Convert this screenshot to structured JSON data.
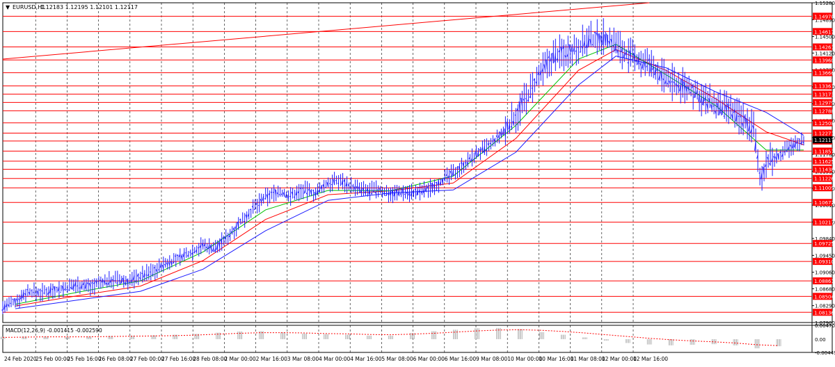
{
  "chart_data": {
    "type": "candlestick",
    "symbol_label": "EURUSD,H1",
    "ohlc_label": "1.12183 1.12195 1.12101 1.12117",
    "price_range": [
      1.079,
      1.1528
    ],
    "x_ticks": [
      "24 Feb 2020",
      "25 Feb 00:00",
      "25 Feb 16:00",
      "26 Feb 08:00",
      "27 Feb 00:00",
      "27 Feb 16:00",
      "28 Feb 08:00",
      "2 Mar 00:00",
      "2 Mar 16:00",
      "3 Mar 08:00",
      "4 Mar 00:00",
      "4 Mar 16:00",
      "5 Mar 08:00",
      "6 Mar 00:00",
      "6 Mar 16:00",
      "9 Mar 08:00",
      "10 Mar 00:00",
      "10 Mar 16:00",
      "11 Mar 08:00",
      "12 Mar 00:00",
      "12 Mar 16:00"
    ],
    "y_ticks": [
      "1.15280",
      "1.14890",
      "1.14500",
      "1.14120",
      "1.13730",
      "1.13340",
      "1.12950",
      "1.12560",
      "1.12170",
      "1.11780",
      "1.11390",
      "1.11000",
      "1.10610",
      "1.10220",
      "1.09840",
      "1.09450",
      "1.09060",
      "1.08680",
      "1.08290",
      "1.07900"
    ],
    "level_lines": [
      "1.14970",
      "1.14617",
      "1.14261",
      "1.13960",
      "1.13666",
      "1.13361",
      "1.13173",
      "1.12979",
      "1.12788",
      "1.12508",
      "1.12271",
      "1.12089",
      "1.11857",
      "1.11625",
      "1.11438",
      "1.11226",
      "1.11009",
      "1.10672",
      "1.10217",
      "1.09725",
      "1.09310",
      "1.08861",
      "1.08504",
      "1.08136"
    ],
    "current_price": "1.12117",
    "price_path": [
      [
        0,
        1.0825
      ],
      [
        6,
        1.0838
      ],
      [
        12,
        1.0862
      ],
      [
        18,
        1.0858
      ],
      [
        24,
        1.0866
      ],
      [
        30,
        1.0869
      ],
      [
        36,
        1.0878
      ],
      [
        42,
        1.0874
      ],
      [
        48,
        1.0883
      ],
      [
        54,
        1.0889
      ],
      [
        60,
        1.0884
      ],
      [
        66,
        1.0897
      ],
      [
        72,
        1.0908
      ],
      [
        78,
        1.0925
      ],
      [
        84,
        1.0938
      ],
      [
        90,
        1.0952
      ],
      [
        96,
        1.0968
      ],
      [
        102,
        1.0962
      ],
      [
        108,
        1.0989
      ],
      [
        114,
        1.1022
      ],
      [
        120,
        1.1052
      ],
      [
        126,
        1.1079
      ],
      [
        132,
        1.1092
      ],
      [
        138,
        1.1082
      ],
      [
        144,
        1.1096
      ],
      [
        150,
        1.1088
      ],
      [
        156,
        1.1112
      ],
      [
        162,
        1.1118
      ],
      [
        168,
        1.1102
      ],
      [
        174,
        1.1093
      ],
      [
        180,
        1.1096
      ],
      [
        186,
        1.1088
      ],
      [
        192,
        1.1092
      ],
      [
        198,
        1.1089
      ],
      [
        204,
        1.1098
      ],
      [
        210,
        1.1115
      ],
      [
        216,
        1.1135
      ],
      [
        222,
        1.1158
      ],
      [
        228,
        1.1182
      ],
      [
        234,
        1.1199
      ],
      [
        240,
        1.1228
      ],
      [
        246,
        1.1268
      ],
      [
        252,
        1.1315
      ],
      [
        258,
        1.1362
      ],
      [
        264,
        1.1405
      ],
      [
        270,
        1.1415
      ],
      [
        276,
        1.1428
      ],
      [
        282,
        1.1442
      ],
      [
        288,
        1.1448
      ],
      [
        294,
        1.1432
      ],
      [
        300,
        1.1405
      ],
      [
        306,
        1.1392
      ],
      [
        312,
        1.1378
      ],
      [
        318,
        1.1349
      ],
      [
        324,
        1.1339
      ],
      [
        330,
        1.1328
      ],
      [
        336,
        1.1305
      ],
      [
        342,
        1.1288
      ],
      [
        348,
        1.1279
      ],
      [
        354,
        1.1262
      ],
      [
        360,
        1.124
      ],
      [
        363,
        1.112
      ],
      [
        366,
        1.1158
      ],
      [
        372,
        1.1174
      ],
      [
        378,
        1.1196
      ],
      [
        384,
        1.1212
      ]
    ],
    "ma_blue": [
      [
        6,
        1.0822
      ],
      [
        36,
        1.0842
      ],
      [
        66,
        1.0862
      ],
      [
        96,
        1.0913
      ],
      [
        126,
        1.1002
      ],
      [
        156,
        1.1072
      ],
      [
        186,
        1.1089
      ],
      [
        216,
        1.1096
      ],
      [
        246,
        1.1183
      ],
      [
        276,
        1.1338
      ],
      [
        294,
        1.1405
      ],
      [
        318,
        1.1378
      ],
      [
        342,
        1.1322
      ],
      [
        366,
        1.1275
      ],
      [
        384,
        1.1222
      ]
    ],
    "ma_red": [
      [
        6,
        1.0828
      ],
      [
        36,
        1.0852
      ],
      [
        66,
        1.0874
      ],
      [
        96,
        1.0933
      ],
      [
        126,
        1.1028
      ],
      [
        156,
        1.1085
      ],
      [
        186,
        1.1094
      ],
      [
        216,
        1.1112
      ],
      [
        246,
        1.1215
      ],
      [
        276,
        1.1372
      ],
      [
        294,
        1.142
      ],
      [
        318,
        1.1372
      ],
      [
        342,
        1.1306
      ],
      [
        366,
        1.123
      ],
      [
        384,
        1.12
      ]
    ],
    "ma_green": [
      [
        6,
        1.0832
      ],
      [
        36,
        1.086
      ],
      [
        66,
        1.0886
      ],
      [
        96,
        1.0953
      ],
      [
        126,
        1.105
      ],
      [
        156,
        1.1095
      ],
      [
        186,
        1.1094
      ],
      [
        216,
        1.1128
      ],
      [
        246,
        1.1245
      ],
      [
        276,
        1.1398
      ],
      [
        294,
        1.1432
      ],
      [
        318,
        1.1362
      ],
      [
        342,
        1.129
      ],
      [
        366,
        1.1188
      ],
      [
        384,
        1.1188
      ]
    ],
    "trend_line": [
      [
        0,
        1.1398
      ],
      [
        310,
        1.1528
      ]
    ],
    "macd": {
      "label": "MACD(12,26,9) -0.001415 -0.002590",
      "y_ticks": [
        "0.004707",
        "0.00",
        "-0.004495"
      ],
      "range": [
        -0.004495,
        0.004707
      ],
      "histogram": [
        0.0008,
        0.0009,
        0.0009,
        0.0008,
        0.0009,
        0.0011,
        0.0012,
        0.0013,
        0.0015,
        0.0018,
        0.0022,
        0.0026,
        0.0027,
        0.0023,
        0.0019,
        0.0017,
        0.0015,
        0.0012,
        0.0012,
        0.0021,
        0.0027,
        0.0032,
        0.0037,
        0.0038,
        0.0034,
        0.0024,
        0.0015,
        0.0006,
        -0.0005,
        -0.0013,
        -0.0018,
        -0.0021,
        -0.0019,
        -0.0017,
        -0.0021,
        -0.0031,
        -0.0024
      ],
      "signal": [
        0.0006,
        0.0007,
        0.0008,
        0.0008,
        0.0008,
        0.0009,
        0.001,
        0.0011,
        0.0012,
        0.0014,
        0.0017,
        0.002,
        0.0022,
        0.0022,
        0.0021,
        0.0019,
        0.0018,
        0.0016,
        0.0015,
        0.0017,
        0.002,
        0.0024,
        0.0028,
        0.0031,
        0.0032,
        0.003,
        0.0026,
        0.0021,
        0.0015,
        0.0009,
        0.0003,
        -0.0002,
        -0.0006,
        -0.0009,
        -0.0013,
        -0.0019,
        -0.0022
      ]
    },
    "grid": true
  }
}
